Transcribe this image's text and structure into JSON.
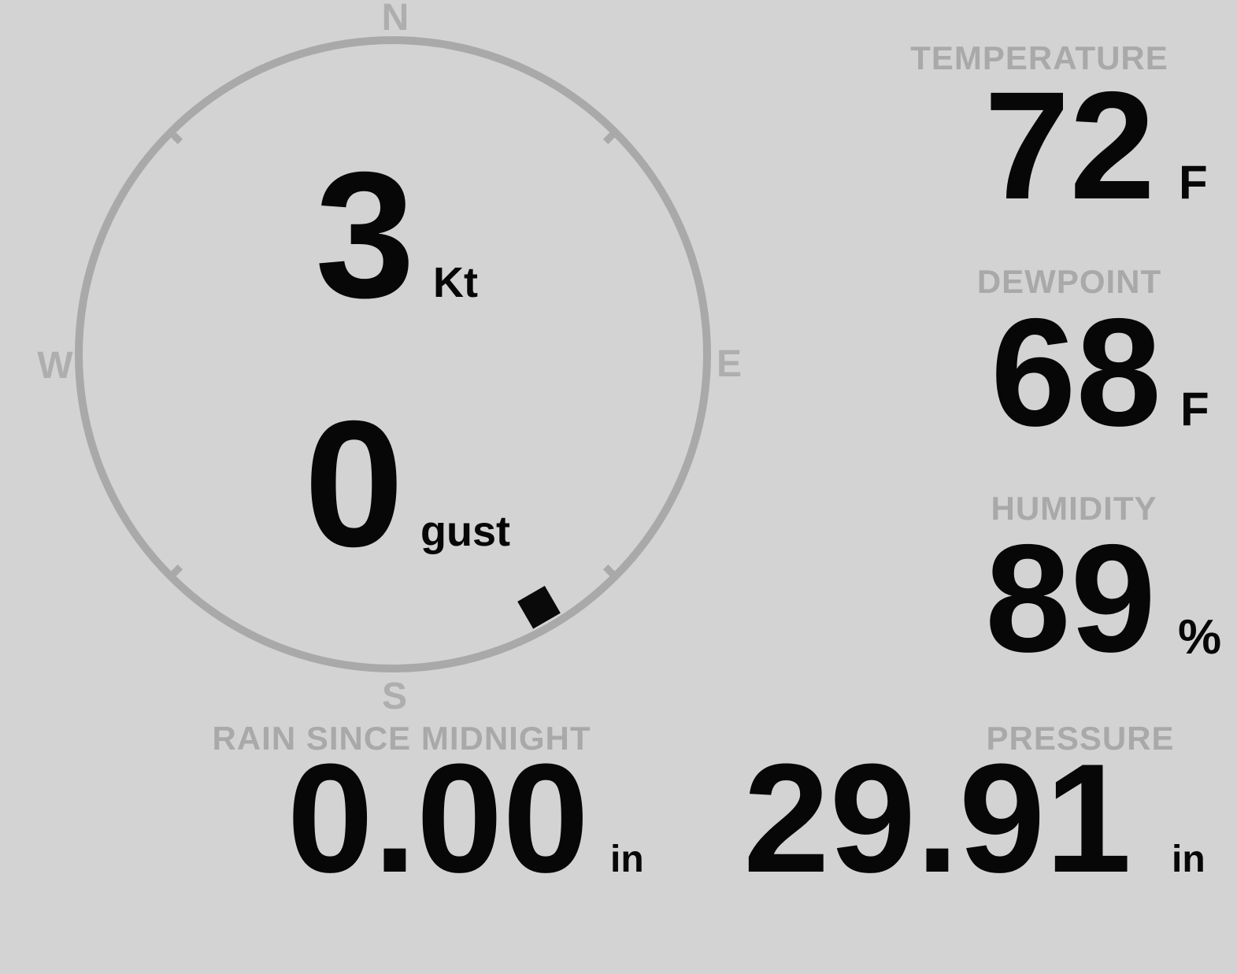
{
  "colors": {
    "background": "#d3d3d3",
    "muted_gray": "#a9a9a9",
    "compass_letter_gray": "#aeaeae",
    "value_black": "#070707"
  },
  "compass": {
    "letters": {
      "north": "N",
      "east": "E",
      "south": "S",
      "west": "W"
    },
    "speed": {
      "value": "3",
      "unit": "Kt"
    },
    "gust": {
      "value": "0",
      "unit": "gust"
    },
    "wind_direction_deg": 150,
    "tick_angles_deg": [
      45,
      135,
      225,
      315
    ]
  },
  "readings": {
    "temperature": {
      "label": "TEMPERATURE",
      "value": "72",
      "unit": "F"
    },
    "dewpoint": {
      "label": "DEWPOINT",
      "value": "68",
      "unit": "F"
    },
    "humidity": {
      "label": "HUMIDITY",
      "value": "89",
      "unit": "%"
    },
    "rain": {
      "label": "RAIN SINCE MIDNIGHT",
      "value": "0.00",
      "unit": "in"
    },
    "pressure": {
      "label": "PRESSURE",
      "value": "29.91",
      "unit": "in"
    }
  }
}
